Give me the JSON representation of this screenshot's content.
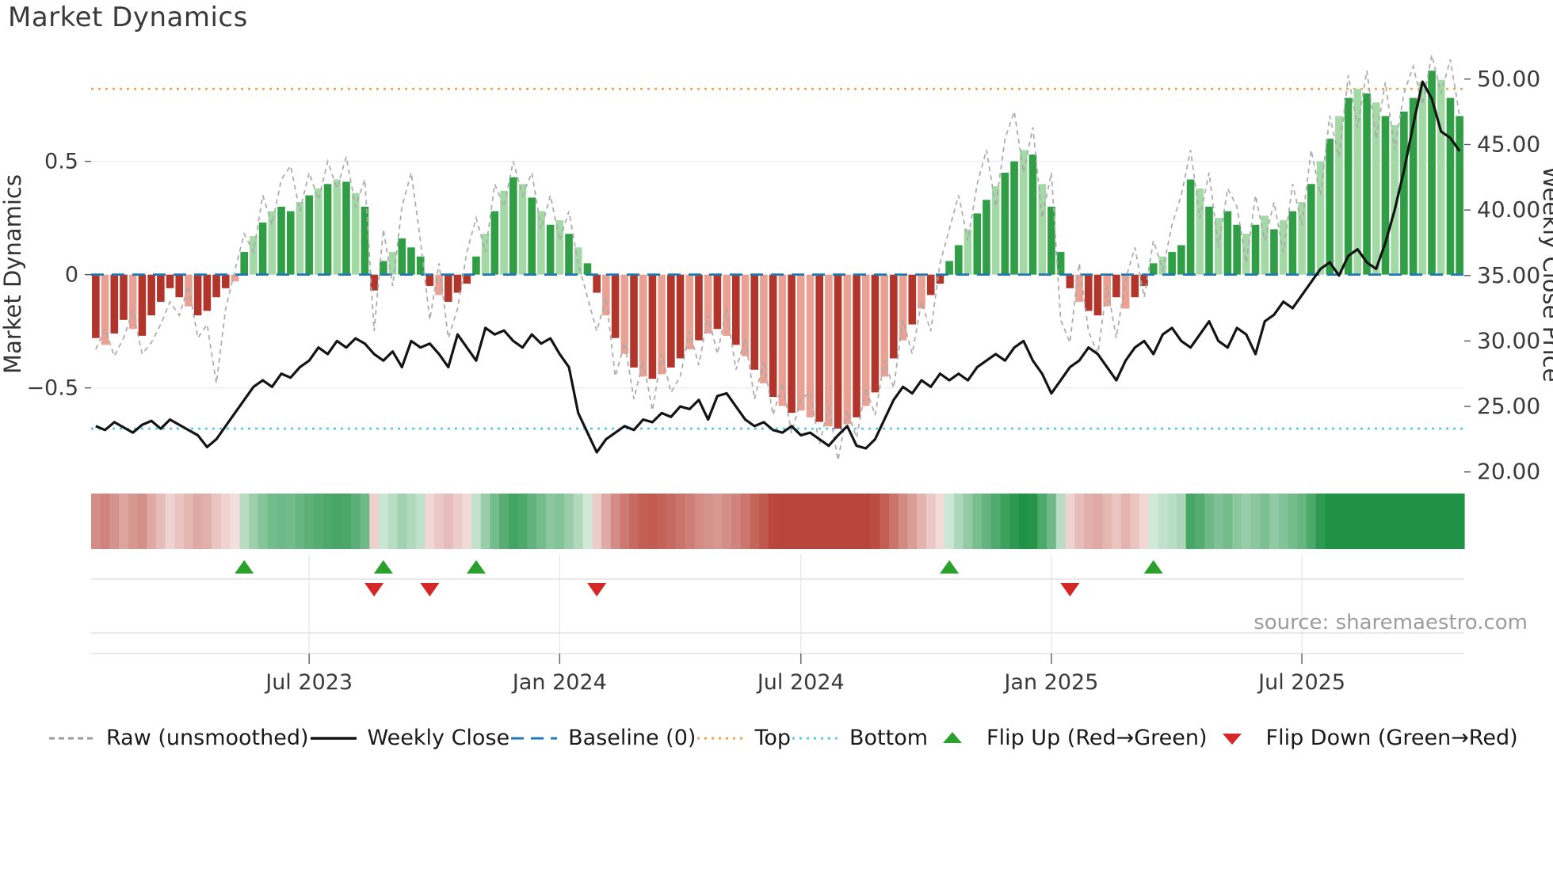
{
  "title": "Market Dynamics",
  "source": "source: sharemaestro.com",
  "axes": {
    "left_label": "Market Dynamics",
    "right_label": "Weekly Close Price",
    "left_ticks": [
      {
        "v": 0.5,
        "label": "0.5"
      },
      {
        "v": 0,
        "label": "0"
      },
      {
        "v": -0.5,
        "label": "−0.5"
      }
    ],
    "right_ticks": [
      {
        "v": 50,
        "label": "50.00"
      },
      {
        "v": 45,
        "label": "45.00"
      },
      {
        "v": 40,
        "label": "40.00"
      },
      {
        "v": 35,
        "label": "35.00"
      },
      {
        "v": 30,
        "label": "30.00"
      },
      {
        "v": 25,
        "label": "25.00"
      },
      {
        "v": 20,
        "label": "20.00"
      }
    ]
  },
  "chart_data": {
    "type": "bar",
    "subtype": "weekly oscillator bars with raw dashed line (left axis), weekly close price line (right axis), signal heatmap strip and flip markers",
    "title": "Market Dynamics",
    "n_weeks": 148,
    "x_range_note": "weekly data, approx Jan 2023 to Nov 2025",
    "x_ticks": [
      {
        "week": 23,
        "label": "Jul 2023"
      },
      {
        "week": 50,
        "label": "Jan 2024"
      },
      {
        "week": 76,
        "label": "Jul 2024"
      },
      {
        "week": 103,
        "label": "Jan 2025"
      },
      {
        "week": 130,
        "label": "Jul 2025"
      }
    ],
    "left_axis": {
      "label": "Market Dynamics",
      "range": [
        -0.9,
        0.95
      ],
      "ticks": [
        0.5,
        0,
        -0.5
      ]
    },
    "right_axis": {
      "label": "Weekly Close Price",
      "range": [
        19.5,
        51.5
      ],
      "ticks": [
        20,
        25,
        30,
        35,
        40,
        45,
        50
      ]
    },
    "baseline": 0,
    "top_threshold": 0.82,
    "bottom_threshold": -0.68,
    "grid_lines_left": [
      0.5,
      -0.5
    ],
    "series": [
      {
        "name": "Oscillator (smoothed)",
        "type": "bar",
        "axis": "left",
        "values": [
          -0.28,
          -0.31,
          -0.26,
          -0.2,
          -0.24,
          -0.27,
          -0.18,
          -0.12,
          -0.06,
          -0.1,
          -0.14,
          -0.18,
          -0.16,
          -0.1,
          -0.06,
          -0.03,
          0.1,
          0.17,
          0.23,
          0.28,
          0.3,
          0.28,
          0.32,
          0.35,
          0.38,
          0.4,
          0.42,
          0.41,
          0.36,
          0.3,
          -0.07,
          0.06,
          0.1,
          0.16,
          0.12,
          0.08,
          -0.05,
          -0.09,
          -0.12,
          -0.08,
          -0.04,
          0.08,
          0.18,
          0.28,
          0.37,
          0.43,
          0.4,
          0.34,
          0.28,
          0.22,
          0.24,
          0.18,
          0.12,
          0.05,
          -0.08,
          -0.18,
          -0.28,
          -0.35,
          -0.41,
          -0.45,
          -0.46,
          -0.44,
          -0.41,
          -0.37,
          -0.33,
          -0.29,
          -0.26,
          -0.24,
          -0.27,
          -0.31,
          -0.36,
          -0.42,
          -0.48,
          -0.54,
          -0.58,
          -0.61,
          -0.6,
          -0.63,
          -0.65,
          -0.67,
          -0.68,
          -0.66,
          -0.63,
          -0.58,
          -0.52,
          -0.45,
          -0.37,
          -0.29,
          -0.22,
          -0.15,
          -0.09,
          -0.04,
          0.06,
          0.13,
          0.2,
          0.27,
          0.33,
          0.39,
          0.45,
          0.5,
          0.55,
          0.53,
          0.4,
          0.3,
          0.1,
          -0.06,
          -0.12,
          -0.16,
          -0.18,
          -0.14,
          -0.1,
          -0.15,
          -0.1,
          -0.05,
          0.05,
          0.08,
          0.1,
          0.13,
          0.42,
          0.38,
          0.3,
          0.25,
          0.28,
          0.22,
          0.18,
          0.22,
          0.26,
          0.2,
          0.24,
          0.28,
          0.32,
          0.4,
          0.5,
          0.6,
          0.7,
          0.78,
          0.82,
          0.8,
          0.76,
          0.7,
          0.66,
          0.72,
          0.78,
          0.85,
          0.9,
          0.86,
          0.78,
          0.7
        ]
      },
      {
        "name": "Raw (unsmoothed)",
        "type": "line-dashed",
        "axis": "left",
        "values": [
          -0.33,
          -0.24,
          -0.36,
          -0.28,
          -0.16,
          -0.35,
          -0.3,
          -0.22,
          -0.12,
          -0.18,
          -0.05,
          -0.28,
          -0.22,
          -0.48,
          -0.15,
          0.02,
          0.18,
          0.1,
          0.35,
          0.22,
          0.42,
          0.48,
          0.28,
          0.45,
          0.33,
          0.5,
          0.38,
          0.52,
          0.3,
          0.42,
          -0.25,
          0.2,
          -0.05,
          0.3,
          0.45,
          0.15,
          -0.2,
          0.05,
          -0.28,
          -0.15,
          0.1,
          0.25,
          0.1,
          0.4,
          0.3,
          0.5,
          0.35,
          0.45,
          0.2,
          0.35,
          0.15,
          0.28,
          0.05,
          -0.1,
          -0.25,
          -0.1,
          -0.45,
          -0.3,
          -0.55,
          -0.38,
          -0.6,
          -0.35,
          -0.52,
          -0.45,
          -0.25,
          -0.4,
          -0.18,
          -0.35,
          -0.15,
          -0.42,
          -0.28,
          -0.55,
          -0.38,
          -0.62,
          -0.48,
          -0.7,
          -0.55,
          -0.52,
          -0.75,
          -0.58,
          -0.82,
          -0.6,
          -0.72,
          -0.5,
          -0.62,
          -0.38,
          -0.5,
          -0.2,
          -0.35,
          -0.12,
          -0.25,
          0.05,
          0.2,
          0.35,
          0.15,
          0.4,
          0.55,
          0.3,
          0.6,
          0.72,
          0.45,
          0.65,
          0.25,
          0.45,
          -0.2,
          -0.3,
          0.05,
          -0.25,
          -0.35,
          -0.05,
          -0.28,
          -0.02,
          0.12,
          -0.1,
          0.15,
          0.02,
          0.22,
          0.35,
          0.55,
          0.25,
          0.45,
          0.12,
          0.38,
          0.3,
          0.05,
          0.35,
          0.15,
          0.32,
          0.1,
          0.4,
          0.22,
          0.55,
          0.35,
          0.7,
          0.52,
          0.88,
          0.65,
          0.9,
          0.6,
          0.85,
          0.55,
          0.8,
          0.92,
          0.75,
          0.97,
          0.8,
          0.95,
          0.7
        ]
      },
      {
        "name": "Weekly Close",
        "type": "line",
        "axis": "right",
        "values": [
          23.5,
          23.2,
          23.8,
          23.4,
          23.0,
          23.6,
          23.9,
          23.3,
          24.0,
          23.6,
          23.2,
          22.8,
          21.9,
          22.5,
          23.5,
          24.5,
          25.5,
          26.5,
          27.0,
          26.5,
          27.5,
          27.2,
          28.0,
          28.5,
          29.5,
          29.0,
          30.0,
          29.5,
          30.2,
          29.8,
          29.0,
          28.5,
          29.2,
          28.0,
          30.0,
          29.5,
          29.8,
          29.0,
          28.0,
          30.5,
          29.5,
          28.5,
          31.0,
          30.5,
          30.8,
          30.0,
          29.5,
          30.5,
          29.8,
          30.2,
          29.0,
          28.0,
          24.5,
          23.0,
          21.5,
          22.5,
          23.0,
          23.5,
          23.2,
          24.0,
          23.8,
          24.5,
          24.2,
          25.0,
          24.8,
          25.5,
          24.0,
          25.8,
          26.0,
          25.0,
          24.0,
          23.5,
          23.8,
          23.2,
          23.0,
          23.5,
          22.8,
          23.0,
          22.5,
          22.0,
          22.8,
          23.5,
          22.0,
          21.8,
          22.5,
          24.0,
          25.5,
          26.5,
          26.0,
          27.0,
          26.5,
          27.5,
          27.0,
          27.5,
          27.0,
          28.0,
          28.5,
          29.0,
          28.5,
          29.5,
          30.0,
          28.5,
          27.5,
          26.0,
          27.0,
          28.0,
          28.5,
          29.5,
          29.0,
          28.0,
          27.0,
          28.5,
          29.5,
          30.0,
          29.0,
          30.5,
          31.0,
          30.0,
          29.5,
          30.5,
          31.5,
          30.0,
          29.5,
          31.0,
          30.5,
          29.0,
          31.5,
          32.0,
          33.0,
          32.5,
          33.5,
          34.5,
          35.5,
          36.0,
          35.0,
          36.5,
          37.0,
          36.0,
          35.5,
          37.5,
          40.0,
          43.0,
          46.5,
          49.8,
          48.5,
          46.0,
          45.5,
          44.5
        ]
      }
    ],
    "flip_up_weeks": [
      16,
      31,
      41,
      92,
      114
    ],
    "flip_down_weeks": [
      30,
      36,
      54,
      105
    ],
    "heatmap_note": "strip below chart: per-week color from red (negative oscillator) through pale to green (positive oscillator)"
  },
  "legend": [
    {
      "label": "Raw (unsmoothed)",
      "kind": "dash",
      "color": "#9a9a9a"
    },
    {
      "label": "Weekly Close",
      "kind": "solid",
      "color": "#141414"
    },
    {
      "label": "Baseline (0)",
      "kind": "longdash",
      "color": "#1f77b4"
    },
    {
      "label": "Top",
      "kind": "dot",
      "color": "#f2a04e"
    },
    {
      "label": "Bottom",
      "kind": "dot",
      "color": "#55c8ea"
    },
    {
      "label": "Flip Up (Red→Green)",
      "kind": "tri-up",
      "color": "#2ca02c"
    },
    {
      "label": "Flip Down (Green→Red)",
      "kind": "tri-down",
      "color": "#d62728"
    }
  ],
  "colors": {
    "green_dark": "#2f9e44",
    "green_light": "#a3d9a5",
    "red_dark": "#b2352b",
    "red_light": "#e9a193",
    "baseline": "#1f77b4",
    "top": "#f2a04e",
    "bottom": "#55c8ea",
    "raw": "#a9a9a9",
    "close": "#141414",
    "flip_up": "#2ca02c",
    "flip_down": "#d62728",
    "heat_red": "#b9453a",
    "heat_green": "#1f9245",
    "grid": "#e9eef6",
    "panel_line": "#dcdcdc"
  }
}
